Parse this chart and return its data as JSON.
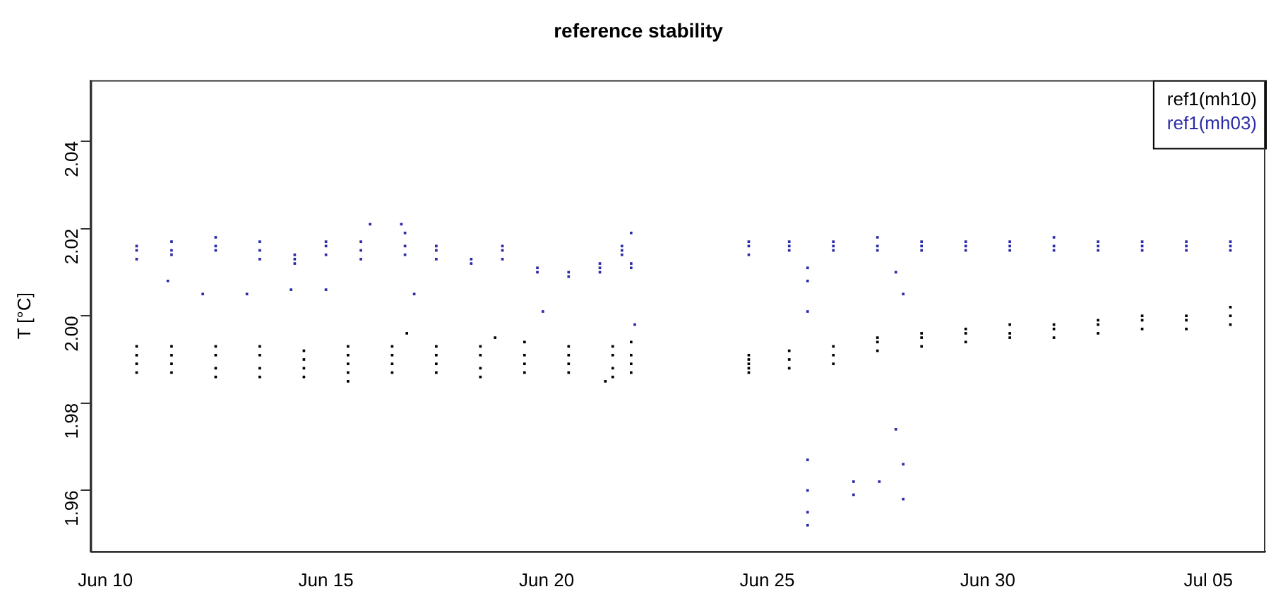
{
  "chart_data": {
    "type": "scatter",
    "title": "reference stability",
    "ylabel": "T [°C]",
    "marker": "square",
    "legend": "top right",
    "xlim": [
      "--06-09T16:00",
      "--07-06T07:00"
    ],
    "ylim": [
      1.946,
      2.054
    ],
    "yticks": [
      1.96,
      1.98,
      {
        "value": 2,
        "label": "2.00"
      },
      2.02,
      2.04
    ],
    "xticks": [
      {
        "value": "--06-10",
        "label": "Jun 10"
      },
      {
        "value": "--06-15",
        "label": "Jun 15"
      },
      {
        "value": "--06-20",
        "label": "Jun 20"
      },
      {
        "value": "--06-25",
        "label": "Jun 25"
      },
      {
        "value": "--06-30",
        "label": "Jun 30"
      },
      {
        "value": "--07-05",
        "label": "Jul 05"
      }
    ],
    "series": [
      {
        "name": "ref1(mh10)",
        "color": "#000000",
        "x": [
          "--06-10T17:00",
          "--06-10T17:00",
          "--06-10T17:00",
          "--06-10T17:00",
          "--06-11T12:00",
          "--06-11T12:00",
          "--06-11T12:00",
          "--06-11T12:00",
          "--06-12T12:00",
          "--06-12T12:00",
          "--06-12T12:00",
          "--06-12T12:00",
          "--06-13T12:00",
          "--06-13T12:00",
          "--06-13T12:00",
          "--06-13T12:00",
          "--06-14T12:00",
          "--06-14T12:00",
          "--06-14T12:00",
          "--06-14T12:00",
          "--06-15T12:00",
          "--06-15T12:00",
          "--06-15T12:00",
          "--06-15T12:00",
          "--06-16T12:00",
          "--06-16T12:00",
          "--06-16T12:00",
          "--06-16T12:00",
          "--06-17T12:00",
          "--06-17T12:00",
          "--06-17T12:00",
          "--06-17T12:00",
          "--06-18T12:00",
          "--06-18T12:00",
          "--06-18T12:00",
          "--06-18T12:00",
          "--06-19T12:00",
          "--06-19T12:00",
          "--06-19T12:00",
          "--06-19T12:00",
          "--06-20T12:00",
          "--06-20T12:00",
          "--06-20T12:00",
          "--06-20T12:00",
          "--06-21T12:00",
          "--06-21T12:00",
          "--06-21T12:00",
          "--06-21T12:00",
          "--06-21T22:00",
          "--06-21T22:00",
          "--06-21T22:00",
          "--06-21T22:00",
          "--06-15T12:00",
          "--06-21T08:00",
          "--06-16T20:00",
          "--06-18T20:00",
          "--06-24T14:00",
          "--06-24T14:00",
          "--06-24T14:00",
          "--06-24T14:00",
          "--06-24T14:00",
          "--06-25T12:00",
          "--06-25T12:00",
          "--06-25T12:00",
          "--06-26T12:00",
          "--06-26T12:00",
          "--06-26T12:00",
          "--06-27T12:00",
          "--06-27T12:00",
          "--06-27T12:00",
          "--06-28T12:00",
          "--06-28T12:00",
          "--06-28T12:00",
          "--06-29T12:00",
          "--06-29T12:00",
          "--06-29T12:00",
          "--06-30T12:00",
          "--06-30T12:00",
          "--06-30T12:00",
          "--07-01T12:00",
          "--07-01T12:00",
          "--07-01T12:00",
          "--07-02T12:00",
          "--07-02T12:00",
          "--07-02T12:00",
          "--07-03T12:00",
          "--07-03T12:00",
          "--07-03T12:00",
          "--07-04T12:00",
          "--07-04T12:00",
          "--07-04T12:00",
          "--07-05T12:00",
          "--07-05T12:00",
          "--07-05T12:00"
        ],
        "values": [
          1.987,
          1.989,
          1.991,
          1.993,
          1.987,
          1.989,
          1.991,
          1.993,
          1.986,
          1.988,
          1.991,
          1.993,
          1.986,
          1.988,
          1.991,
          1.993,
          1.986,
          1.988,
          1.99,
          1.992,
          1.987,
          1.989,
          1.991,
          1.993,
          1.987,
          1.989,
          1.991,
          1.993,
          1.987,
          1.989,
          1.991,
          1.993,
          1.986,
          1.988,
          1.991,
          1.993,
          1.987,
          1.989,
          1.991,
          1.994,
          1.987,
          1.989,
          1.991,
          1.993,
          1.986,
          1.988,
          1.991,
          1.993,
          1.987,
          1.989,
          1.991,
          1.994,
          1.985,
          1.985,
          1.996,
          1.995,
          1.987,
          1.988,
          1.989,
          1.99,
          1.991,
          1.988,
          1.99,
          1.992,
          1.989,
          1.991,
          1.993,
          1.992,
          1.994,
          1.995,
          1.993,
          1.995,
          1.996,
          1.994,
          1.996,
          1.997,
          1.995,
          1.996,
          1.998,
          1.995,
          1.997,
          1.998,
          1.996,
          1.998,
          1.999,
          1.997,
          1.999,
          2.0,
          1.997,
          1.999,
          2.0,
          1.998,
          2.0,
          2.002
        ]
      },
      {
        "name": "ref1(mh03)",
        "color": "#2b2ba8",
        "x": [
          "--06-10T17:00",
          "--06-10T17:00",
          "--06-10T17:00",
          "--06-11T12:00",
          "--06-11T12:00",
          "--06-11T12:00",
          "--06-12T12:00",
          "--06-12T12:00",
          "--06-12T12:00",
          "--06-13T12:00",
          "--06-13T12:00",
          "--06-13T12:00",
          "--06-14T07:00",
          "--06-14T07:00",
          "--06-14T07:00",
          "--06-15T00:00",
          "--06-15T00:00",
          "--06-15T00:00",
          "--06-15T19:00",
          "--06-15T19:00",
          "--06-15T19:00",
          "--06-16T19:00",
          "--06-16T19:00",
          "--06-16T19:00",
          "--06-17T12:00",
          "--06-17T12:00",
          "--06-17T12:00",
          "--06-18T07:00",
          "--06-18T07:00",
          "--06-19T00:00",
          "--06-19T00:00",
          "--06-19T00:00",
          "--06-19T19:00",
          "--06-19T19:00",
          "--06-20T12:00",
          "--06-20T12:00",
          "--06-21T05:00",
          "--06-21T05:00",
          "--06-21T05:00",
          "--06-21T17:00",
          "--06-21T17:00",
          "--06-21T17:00",
          "--06-21T22:00",
          "--06-21T22:00",
          "--06-21T22:00",
          "--06-11T10:00",
          "--06-12T05:00",
          "--06-13T05:00",
          "--06-14T05:00",
          "--06-15T00:00",
          "--06-17T00:00",
          "--06-19T22:00",
          "--06-22T00:00",
          "--06-16T00:00",
          "--06-16T17:00",
          "--06-24T14:00",
          "--06-24T14:00",
          "--06-24T14:00",
          "--06-25T12:00",
          "--06-25T12:00",
          "--06-25T12:00",
          "--06-26T12:00",
          "--06-26T12:00",
          "--06-26T12:00",
          "--06-27T12:00",
          "--06-27T12:00",
          "--06-27T12:00",
          "--06-28T12:00",
          "--06-28T12:00",
          "--06-28T12:00",
          "--06-29T12:00",
          "--06-29T12:00",
          "--06-29T12:00",
          "--06-30T12:00",
          "--06-30T12:00",
          "--06-30T12:00",
          "--07-01T12:00",
          "--07-01T12:00",
          "--07-01T12:00",
          "--07-02T12:00",
          "--07-02T12:00",
          "--07-02T12:00",
          "--07-03T12:00",
          "--07-03T12:00",
          "--07-03T12:00",
          "--07-04T12:00",
          "--07-04T12:00",
          "--07-04T12:00",
          "--07-05T12:00",
          "--07-05T12:00",
          "--07-05T12:00",
          "--06-25T22:00",
          "--06-25T22:00",
          "--06-25T22:00",
          "--06-25T22:00",
          "--06-25T22:00",
          "--06-25T22:00",
          "--06-25T22:00",
          "--06-26T23:00",
          "--06-26T23:00",
          "--06-27T13:00",
          "--06-27T22:00",
          "--06-27T22:00",
          "--06-28T02:00",
          "--06-28T02:00",
          "--06-28T02:00"
        ],
        "values": [
          2.013,
          2.015,
          2.016,
          2.014,
          2.015,
          2.017,
          2.015,
          2.016,
          2.018,
          2.013,
          2.015,
          2.017,
          2.012,
          2.013,
          2.014,
          2.014,
          2.016,
          2.017,
          2.013,
          2.015,
          2.017,
          2.014,
          2.016,
          2.019,
          2.013,
          2.015,
          2.016,
          2.012,
          2.013,
          2.013,
          2.015,
          2.016,
          2.01,
          2.011,
          2.009,
          2.01,
          2.01,
          2.011,
          2.012,
          2.014,
          2.015,
          2.016,
          2.011,
          2.012,
          2.019,
          2.008,
          2.005,
          2.005,
          2.006,
          2.006,
          2.005,
          2.001,
          1.998,
          2.021,
          2.021,
          2.014,
          2.016,
          2.017,
          2.015,
          2.016,
          2.017,
          2.015,
          2.016,
          2.017,
          2.015,
          2.016,
          2.018,
          2.015,
          2.016,
          2.017,
          2.015,
          2.016,
          2.017,
          2.015,
          2.016,
          2.017,
          2.015,
          2.016,
          2.018,
          2.015,
          2.016,
          2.017,
          2.015,
          2.016,
          2.017,
          2.015,
          2.016,
          2.017,
          2.015,
          2.016,
          2.017,
          2.011,
          2.008,
          2.001,
          1.967,
          1.96,
          1.955,
          1.952,
          1.962,
          1.959,
          1.962,
          1.974,
          2.01,
          1.966,
          1.958,
          2.005
        ]
      }
    ]
  }
}
